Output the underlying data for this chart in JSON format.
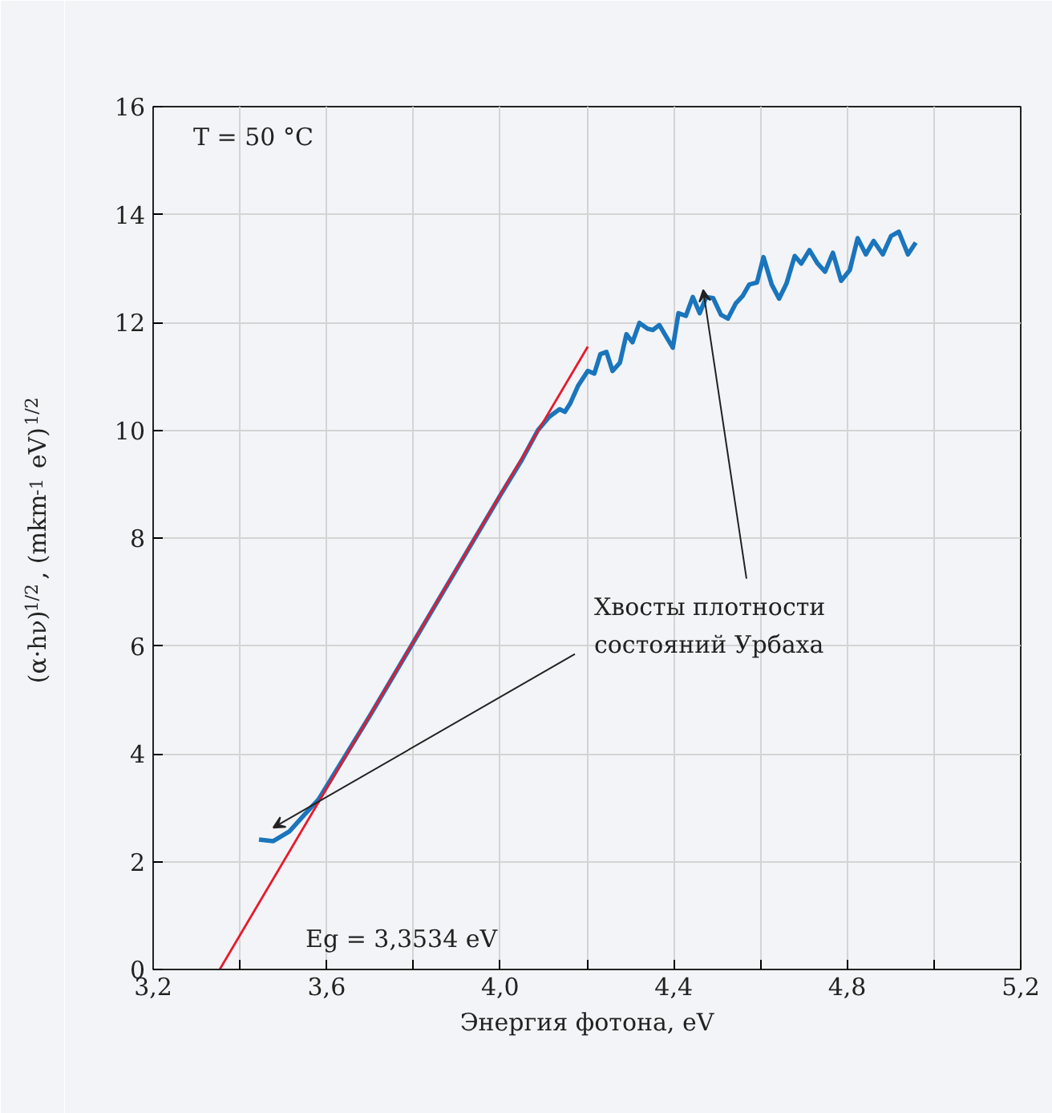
{
  "chart_data": {
    "type": "line",
    "xlabel": "Энергия фотона, eV",
    "ylabel": "(α·hν)$^{1/2}$, (mkm$^{-1}$ eV)$^{1/2}$",
    "xlim": [
      3.2,
      5.2
    ],
    "ylim": [
      0,
      16
    ],
    "xticks": [
      {
        "value": 3.2,
        "label": "3,2"
      },
      {
        "value": 3.4,
        "label": null
      },
      {
        "value": 3.6,
        "label": "3,6"
      },
      {
        "value": 3.8,
        "label": null
      },
      {
        "value": 4.0,
        "label": "4,0"
      },
      {
        "value": 4.2,
        "label": null
      },
      {
        "value": 4.4,
        "label": "4,4"
      },
      {
        "value": 4.6,
        "label": null
      },
      {
        "value": 4.8,
        "label": "4,8"
      },
      {
        "value": 5.0,
        "label": null
      },
      {
        "value": 5.2,
        "label": "5,2"
      }
    ],
    "yticks": [
      0,
      2,
      4,
      6,
      8,
      10,
      12,
      14,
      16
    ],
    "grid": true,
    "line_style": "solid",
    "marker": "none",
    "series": [
      {
        "color": "#1a75bc",
        "x": [
          3.444,
          3.477,
          3.514,
          3.551,
          3.581,
          3.7,
          3.8,
          3.9,
          4.0,
          4.05,
          4.087,
          4.112,
          4.137,
          4.149,
          4.161,
          4.18,
          4.202,
          4.217,
          4.231,
          4.245,
          4.259,
          4.276,
          4.291,
          4.305,
          4.321,
          4.34,
          4.352,
          4.367,
          4.383,
          4.398,
          4.411,
          4.428,
          4.444,
          4.46,
          4.475,
          4.491,
          4.509,
          4.525,
          4.543,
          4.559,
          4.574,
          4.592,
          4.607,
          4.626,
          4.643,
          4.66,
          4.679,
          4.694,
          4.713,
          4.731,
          4.749,
          4.767,
          4.786,
          4.806,
          4.824,
          4.843,
          4.861,
          4.882,
          4.901,
          4.919,
          4.94,
          4.958
        ],
        "values": [
          2.41,
          2.38,
          2.56,
          2.89,
          3.15,
          4.71,
          6.07,
          7.43,
          8.79,
          9.45,
          10.0,
          10.24,
          10.39,
          10.34,
          10.49,
          10.83,
          11.1,
          11.05,
          11.41,
          11.45,
          11.1,
          11.25,
          11.78,
          11.63,
          11.99,
          11.88,
          11.86,
          11.95,
          11.73,
          11.53,
          12.17,
          12.12,
          12.47,
          12.17,
          12.47,
          12.45,
          12.14,
          12.07,
          12.35,
          12.49,
          12.7,
          12.74,
          13.21,
          12.7,
          12.44,
          12.72,
          13.23,
          13.09,
          13.34,
          13.1,
          12.94,
          13.29,
          12.77,
          12.97,
          13.56,
          13.26,
          13.51,
          13.26,
          13.6,
          13.68,
          13.26,
          13.48
        ]
      },
      {
        "color": "#e8192c",
        "x": [
          3.3534,
          4.202
        ],
        "values": [
          0,
          11.55
        ]
      }
    ],
    "annotations": [
      "T = 50 °C",
      "Eg = 3,3534 eV",
      {
        "text": "Хвосты плотности\nсостояний Урбаха",
        "x": 4.468,
        "y": 12.6
      }
    ]
  }
}
